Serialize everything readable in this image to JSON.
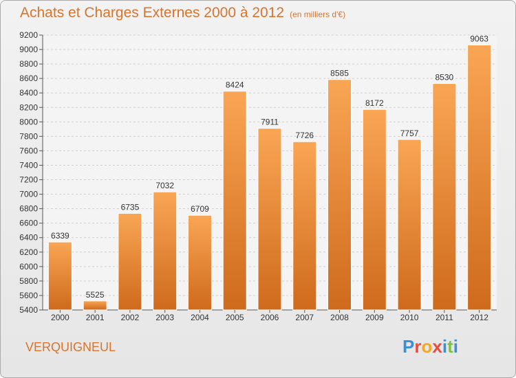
{
  "title": "Achats et Charges Externes 2000 à 2012",
  "subtitle": "(en milliers d'€)",
  "place": "VERQUIGNEUL",
  "logo": {
    "letters": [
      "P",
      "r",
      "o",
      "x",
      "i",
      "t",
      "i"
    ],
    "colors": [
      "#3a8fd6",
      "#e74c3c",
      "#f5a623",
      "#e74c3c",
      "#3a8fd6",
      "#7cc242",
      "#3a8fd6"
    ]
  },
  "colors": {
    "accent": "#d8742c",
    "bar_top": "#f9a654",
    "bar_bottom": "#cf6a1c"
  },
  "chart_data": {
    "type": "bar",
    "categories": [
      "2000",
      "2001",
      "2002",
      "2003",
      "2004",
      "2005",
      "2006",
      "2007",
      "2008",
      "2009",
      "2010",
      "2011",
      "2012"
    ],
    "values": [
      6339,
      5525,
      6735,
      7032,
      6709,
      8424,
      7911,
      7726,
      8585,
      8172,
      7757,
      8530,
      9063
    ],
    "data_labels": [
      "6339",
      "5525",
      "6735",
      "7032",
      "6709",
      "8424",
      "7911",
      "7726",
      "8585",
      "8172",
      "7757",
      "8530",
      "9063"
    ],
    "yticks": [
      5400,
      5600,
      5800,
      6000,
      6200,
      6400,
      6600,
      6800,
      7000,
      7200,
      7400,
      7600,
      7800,
      8000,
      8200,
      8400,
      8600,
      8800,
      9000,
      9200
    ],
    "ylim": [
      5400,
      9200
    ],
    "grid": true,
    "legend": "none"
  }
}
